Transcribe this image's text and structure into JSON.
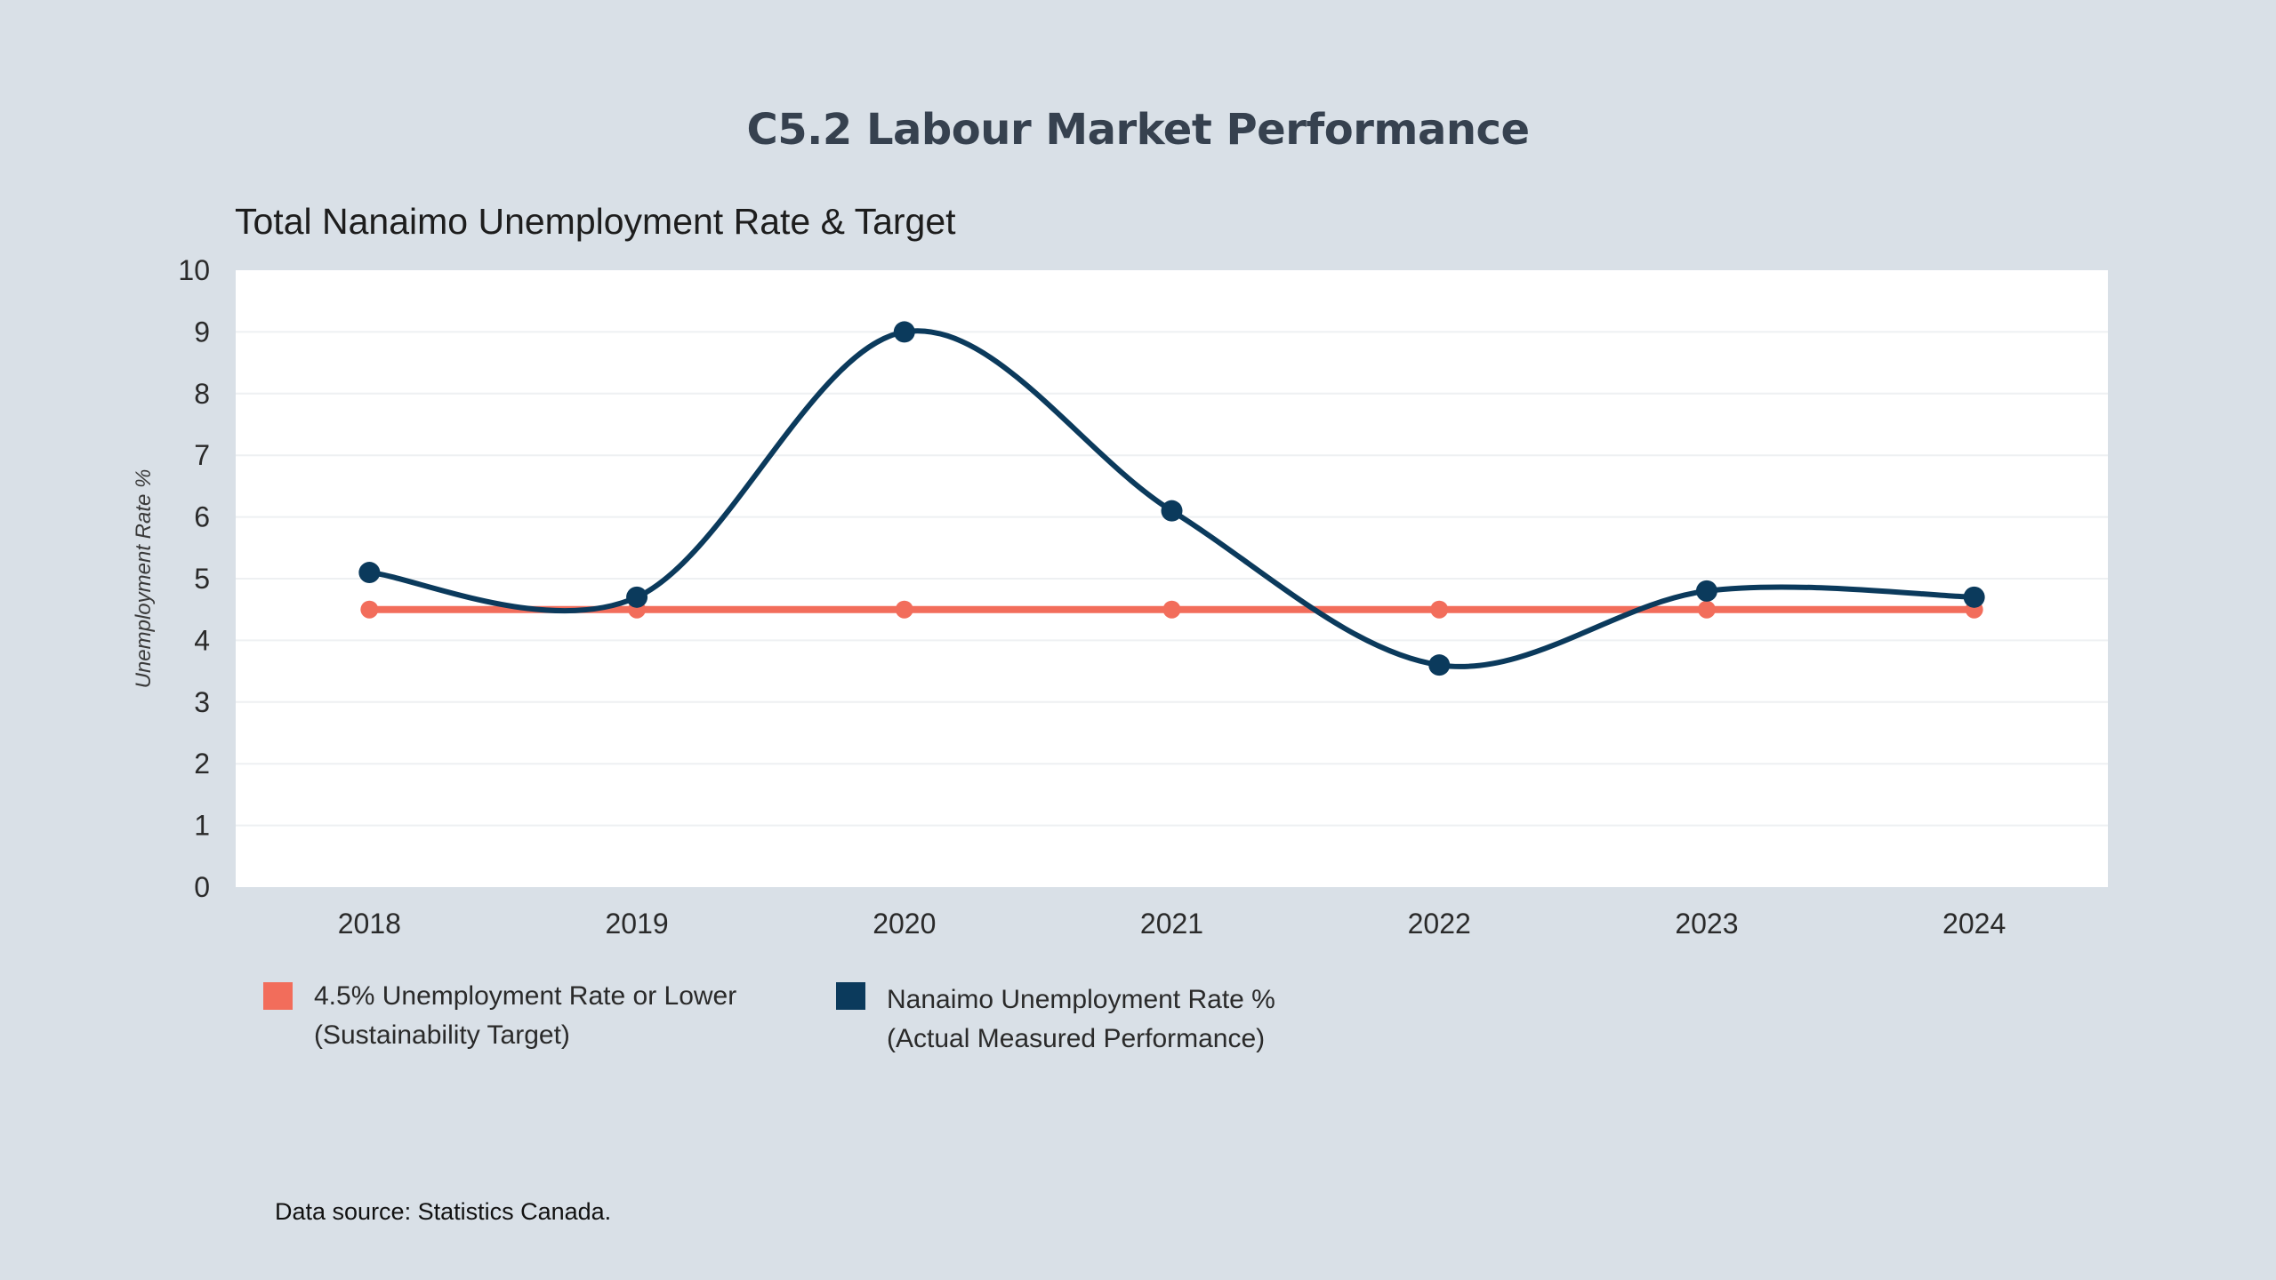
{
  "header": {
    "title": "C5.2 Labour Market Performance"
  },
  "chart_data": {
    "type": "line",
    "title": "Total Nanaimo Unemployment Rate & Target",
    "xlabel": "",
    "ylabel": "Unemployment Rate %",
    "ylim": [
      0,
      10
    ],
    "yticks": [
      "0",
      "1",
      "2",
      "3",
      "4",
      "5",
      "6",
      "7",
      "8",
      "9",
      "10"
    ],
    "categories": [
      "2018",
      "2019",
      "2020",
      "2021",
      "2022",
      "2023",
      "2024"
    ],
    "grid": true,
    "legend_position": "bottom-left",
    "series": [
      {
        "name": "4.5% Unemployment Rate or Lower (Sustainability Target)",
        "legend_line1": "4.5% Unemployment Rate or Lower",
        "legend_line2": "(Sustainability Target)",
        "color": "#f26d5b",
        "smooth": false,
        "values": [
          4.5,
          4.5,
          4.5,
          4.5,
          4.5,
          4.5,
          4.5
        ]
      },
      {
        "name": "Nanaimo Unemployment Rate % (Actual Measured Performance)",
        "legend_line1": "Nanaimo Unemployment Rate %",
        "legend_line2": "(Actual Measured Performance)",
        "color": "#0b3a5c",
        "smooth": true,
        "values": [
          5.1,
          4.7,
          9.0,
          6.1,
          3.6,
          4.8,
          4.7
        ]
      }
    ]
  },
  "footer": {
    "source": "Data source: Statistics Canada."
  },
  "colors": {
    "background": "#d9e0e7",
    "plot_background": "#ffffff",
    "title": "#36414f"
  }
}
